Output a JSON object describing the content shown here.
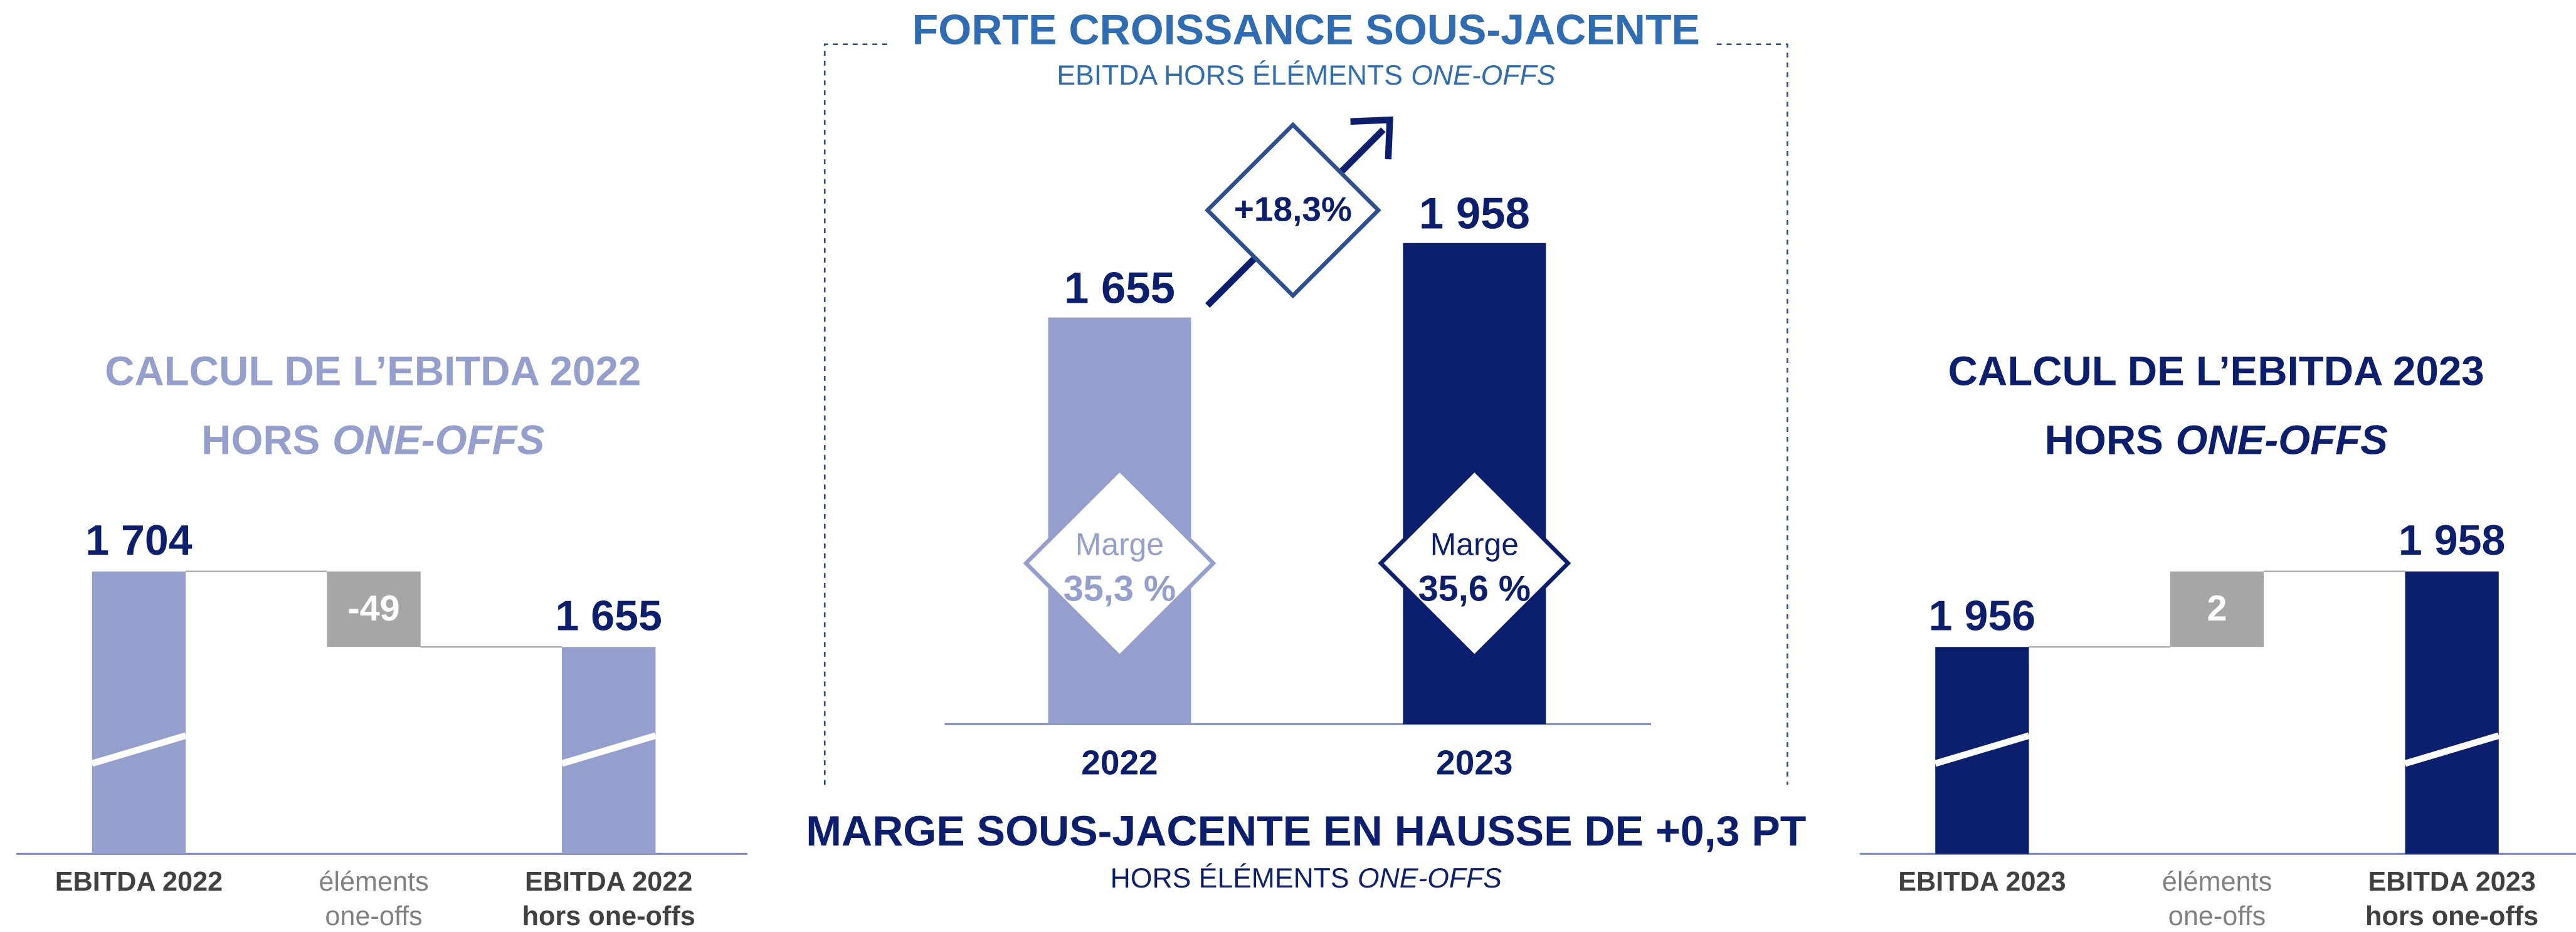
{
  "chart_data": [
    {
      "type": "waterfall",
      "title": "CALCUL DE L’EBITDA 2022",
      "subtitle": [
        "HORS",
        "ONE-OFFS"
      ],
      "title_color": "#949fce",
      "categories": [
        [
          "EBITDA 2022"
        ],
        [
          "éléments",
          "one-offs"
        ],
        [
          "EBITDA 2022",
          "hors one-offs"
        ]
      ],
      "values": [
        1704,
        -49,
        1655
      ],
      "value_labels": [
        "1 704",
        "-49",
        "1 655"
      ],
      "colors": [
        "#949fce",
        "#a6a6a6",
        "#949fce"
      ]
    },
    {
      "type": "bar",
      "title": "FORTE CROISSANCE SOUS-JACENTE",
      "subtitle": [
        "EBITDA HORS ÉLÉMENTS",
        "ONE-OFFS"
      ],
      "categories": [
        "2022",
        "2023"
      ],
      "values": [
        1655,
        1958
      ],
      "value_labels": [
        "1 655",
        "1 958"
      ],
      "colors": [
        "#949fce",
        "#0c1f6f"
      ],
      "growth": {
        "value": 18.3,
        "label": "+18,3%"
      },
      "margin": {
        "label": "Marge",
        "values": [
          35.3,
          35.6
        ],
        "value_labels": [
          "35,3 %",
          "35,6 %"
        ]
      },
      "footer_title": "MARGE SOUS-JACENTE EN HAUSSE DE +0,3 PT",
      "footer_subtitle": [
        "HORS ÉLÉMENTS",
        "ONE-OFFS"
      ]
    },
    {
      "type": "waterfall",
      "title": "CALCUL DE L’EBITDA 2023",
      "subtitle": [
        "HORS",
        "ONE-OFFS"
      ],
      "title_color": "#0c1f6f",
      "categories": [
        [
          "EBITDA 2023"
        ],
        [
          "éléments",
          "one-offs"
        ],
        [
          "EBITDA 2023",
          "hors one-offs"
        ]
      ],
      "values": [
        1956,
        2,
        1958
      ],
      "value_labels": [
        "1 956",
        "2",
        "1 958"
      ],
      "colors": [
        "#0c1f6f",
        "#a6a6a6",
        "#0c1f6f"
      ]
    }
  ]
}
